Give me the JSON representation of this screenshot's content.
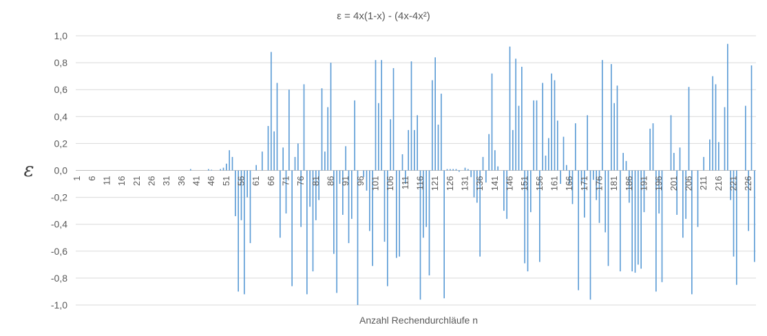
{
  "chart_data": {
    "type": "bar",
    "title": "ε = 4x(1-x) - (4x-4x²)",
    "xlabel": "Anzahl Rechendurchläufe n",
    "ylabel": "ε",
    "ylim": [
      -1.0,
      1.0
    ],
    "yticks": [
      1.0,
      0.8,
      0.6,
      0.4,
      0.2,
      0.0,
      -0.2,
      -0.4,
      -0.6,
      -0.8,
      -1.0
    ],
    "ytick_labels": [
      "1,0",
      "0,8",
      "0,6",
      "0,4",
      "0,2",
      "0,0",
      "-0,2",
      "-0,4",
      "-0,6",
      "-0,8",
      "-1,0"
    ],
    "xtick_labels": [
      "1",
      "6",
      "11",
      "16",
      "21",
      "26",
      "31",
      "36",
      "41",
      "46",
      "51",
      "56",
      "61",
      "66",
      "71",
      "76",
      "81",
      "86",
      "91",
      "96",
      "101",
      "106",
      "111",
      "116",
      "121",
      "126",
      "131",
      "136",
      "141",
      "146",
      "151",
      "156",
      "161",
      "166",
      "171",
      "176",
      "181",
      "186",
      "191",
      "196",
      "201",
      "206",
      "211",
      "216",
      "221",
      "226"
    ],
    "grid": true,
    "legend": "none",
    "color": "#5b9bd5",
    "x_start": 1,
    "values": [
      0,
      0,
      0,
      0,
      0,
      0,
      0,
      0,
      0,
      0,
      0,
      0,
      0,
      0,
      0,
      0,
      0,
      0,
      0,
      0,
      0,
      0,
      0,
      0,
      0,
      0,
      0,
      0,
      0,
      0,
      0,
      0,
      0,
      0,
      0,
      0,
      0,
      0,
      0.01,
      0,
      0,
      0,
      0,
      0,
      0.01,
      0.005,
      0,
      0,
      0.01,
      0.02,
      0.05,
      0.15,
      0.1,
      -0.34,
      -0.9,
      -0.37,
      -0.92,
      -0.2,
      -0.54,
      0,
      0.04,
      0,
      0.14,
      0,
      0.33,
      0.88,
      0.29,
      0.65,
      -0.5,
      0.17,
      -0.32,
      0.6,
      -0.86,
      0.1,
      0.2,
      -0.42,
      0.64,
      -0.92,
      -0.27,
      -0.75,
      -0.37,
      -0.22,
      0.61,
      0.14,
      0.47,
      0.8,
      -0.62,
      -0.91,
      -0.1,
      -0.33,
      0.18,
      -0.54,
      -0.36,
      0.52,
      -1.0,
      0,
      -0.05,
      -0.15,
      -0.45,
      -0.71,
      0.82,
      0.5,
      0.82,
      -0.53,
      -0.86,
      0.38,
      0.76,
      -0.65,
      -0.64,
      0.12,
      -0.1,
      0.3,
      0.81,
      0.3,
      0.41,
      -0.96,
      -0.5,
      -0.42,
      -0.78,
      0.67,
      0.84,
      0.34,
      0.57,
      -0.95,
      0.01,
      0.01,
      0.01,
      0.01,
      -0.01,
      0,
      0.02,
      0.01,
      -0.05,
      -0.2,
      -0.24,
      -0.64,
      0.1,
      -0.09,
      0.27,
      0.72,
      0.15,
      0.03,
      0,
      -0.3,
      -0.36,
      0.92,
      0.3,
      0.83,
      0.48,
      0.77,
      -0.69,
      -0.75,
      -0.31,
      0.52,
      0.52,
      -0.68,
      0.65,
      0.11,
      0.24,
      0.72,
      0.67,
      0.37,
      -0.1,
      0.25,
      0.04,
      -0.1,
      -0.25,
      0.35,
      -0.89,
      -0.1,
      -0.35,
      0.41,
      -0.96,
      -0.07,
      -0.22,
      -0.39,
      0.82,
      -0.46,
      -0.71,
      0.79,
      0.5,
      0.63,
      -0.75,
      0.13,
      0.07,
      -0.24,
      -0.75,
      -0.76,
      -0.7,
      -0.73,
      -0.31,
      0,
      0.31,
      0.35,
      -0.9,
      -0.32,
      -0.83,
      0,
      0,
      0.41,
      0.13,
      -0.33,
      0.17,
      -0.5,
      -0.36,
      0.62,
      -0.92,
      0,
      -0.42,
      0,
      0.1,
      0,
      0.23,
      0.7,
      0.64,
      0.21,
      0,
      0.47,
      0.94,
      -0.22,
      -0.64,
      -0.85,
      0,
      0,
      0.48,
      -0.45,
      0.78,
      -0.68
    ]
  }
}
